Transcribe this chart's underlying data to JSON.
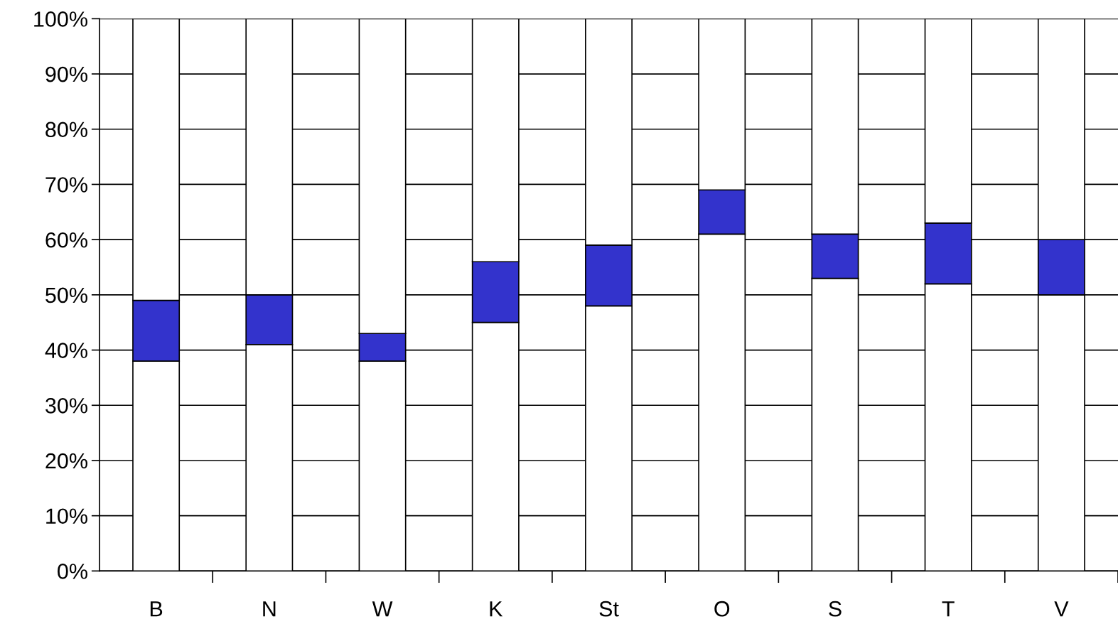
{
  "chart_data": {
    "type": "bar",
    "stacked": true,
    "categories": [
      "B",
      "N",
      "W",
      "K",
      "St",
      "O",
      "S",
      "T",
      "V"
    ],
    "series": [
      {
        "color": "#ffffff",
        "values": [
          38,
          41,
          38,
          45,
          48,
          61,
          53,
          52,
          50
        ]
      },
      {
        "color": "#3333cc",
        "values": [
          11,
          9,
          5,
          11,
          11,
          8,
          8,
          11,
          10
        ]
      },
      {
        "color": "#ffffff",
        "values": [
          51,
          50,
          57,
          44,
          41,
          31,
          39,
          37,
          40
        ]
      }
    ],
    "ylim": [
      0,
      100
    ],
    "yticks": [
      {
        "value": 0,
        "label": "0%"
      },
      {
        "value": 10,
        "label": "10%"
      },
      {
        "value": 20,
        "label": "20%"
      },
      {
        "value": 30,
        "label": "30%"
      },
      {
        "value": 40,
        "label": "40%"
      },
      {
        "value": 50,
        "label": "50%"
      },
      {
        "value": 60,
        "label": "60%"
      },
      {
        "value": 70,
        "label": "70%"
      },
      {
        "value": 80,
        "label": "80%"
      },
      {
        "value": 90,
        "label": "90%"
      },
      {
        "value": 100,
        "label": "100%"
      }
    ],
    "grid": "y"
  }
}
